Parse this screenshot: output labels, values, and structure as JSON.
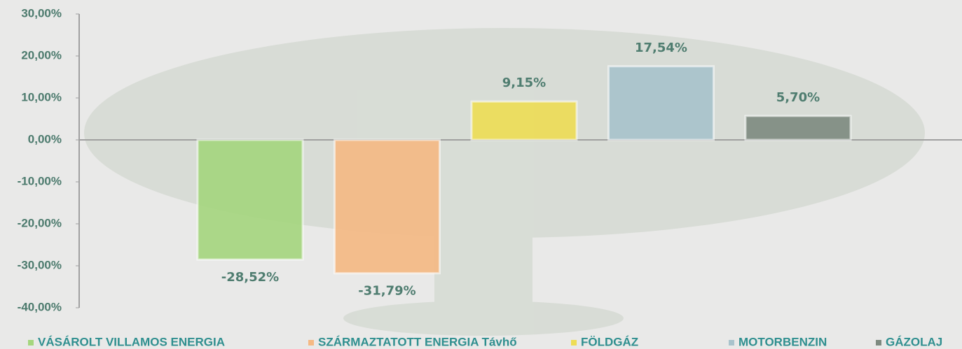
{
  "chart_data": {
    "type": "bar",
    "series": [
      {
        "name": "VÁSÁROLT VILLAMOS ENERGIA",
        "color": "#a5d67e",
        "values": [
          -28.52
        ],
        "value_labels": [
          "-28,52%"
        ]
      },
      {
        "name": "SZÁRMAZTATOTT ENERGIA Távhő",
        "color": "#f5b983",
        "values": [
          -31.79
        ],
        "value_labels": [
          "-31,79%"
        ]
      },
      {
        "name": "FÖLDGÁZ",
        "color": "#eedd55",
        "values": [
          9.15
        ],
        "value_labels": [
          "9,15%"
        ]
      },
      {
        "name": "MOTORBENZIN",
        "color": "#a8c3cc",
        "values": [
          17.54
        ],
        "value_labels": [
          "17,54%"
        ]
      },
      {
        "name": "GÁZOLAJ",
        "color": "#7e8a80",
        "values": [
          5.7
        ],
        "value_labels": [
          "5,70%"
        ]
      }
    ],
    "ylim": [
      -40,
      30
    ],
    "yticks": [
      {
        "value": 30,
        "label": "30,00%"
      },
      {
        "value": 20,
        "label": "20,00%"
      },
      {
        "value": 10,
        "label": "10,00%"
      },
      {
        "value": 0,
        "label": "0,00%"
      },
      {
        "value": -10,
        "label": "-10,00%"
      },
      {
        "value": -20,
        "label": "-20,00%"
      },
      {
        "value": -30,
        "label": "-30,00%"
      },
      {
        "value": -40,
        "label": "-40,00%"
      }
    ],
    "legend": "bottom"
  }
}
